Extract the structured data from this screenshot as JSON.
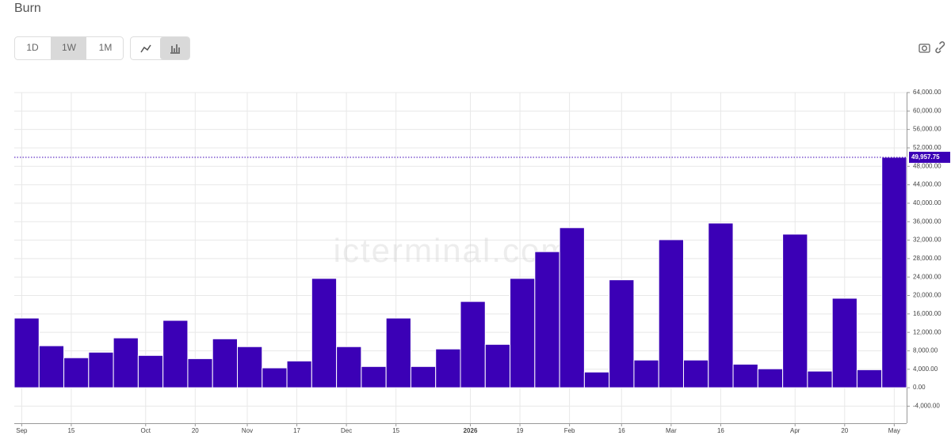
{
  "chart_data": {
    "type": "bar",
    "title": "Burn",
    "intervals": [
      "1D",
      "1W",
      "1M"
    ],
    "watermark": "icterminal.com",
    "color": "#3b00b6",
    "values": [
      15100,
      9100,
      6500,
      7700,
      10800,
      7000,
      14600,
      6300,
      10600,
      8900,
      4300,
      5800,
      23700,
      8900,
      4600,
      15100,
      4600,
      8400,
      18700,
      9400,
      23700,
      29500,
      34700,
      3400,
      23400,
      6000,
      32100,
      6000,
      35700,
      5100,
      4100,
      33300,
      3600,
      19400,
      3900,
      49957.75
    ],
    "value_labels": [
      null,
      null,
      null,
      null,
      null,
      null,
      null,
      null,
      null,
      null,
      null,
      null,
      null,
      null,
      null,
      null,
      null,
      null,
      null,
      null,
      null,
      null,
      null,
      null,
      null,
      null,
      null,
      null,
      null,
      null,
      null,
      null,
      null,
      null,
      null,
      "49,957.75"
    ],
    "xlim": [
      0,
      36
    ],
    "xticks": [
      {
        "value": 0.3,
        "label": "Sep"
      },
      {
        "value": 2.3,
        "label": "15"
      },
      {
        "value": 5.3,
        "label": "Oct"
      },
      {
        "value": 7.3,
        "label": "20"
      },
      {
        "value": 9.4,
        "label": "Nov"
      },
      {
        "value": 11.4,
        "label": "17"
      },
      {
        "value": 13.4,
        "label": "Dec"
      },
      {
        "value": 15.4,
        "label": "15"
      },
      {
        "value": 18.4,
        "label": "2026"
      },
      {
        "value": 20.4,
        "label": "19"
      },
      {
        "value": 22.4,
        "label": "Feb"
      },
      {
        "value": 24.5,
        "label": "16"
      },
      {
        "value": 26.5,
        "label": "Mar"
      },
      {
        "value": 28.5,
        "label": "16"
      },
      {
        "value": 31.5,
        "label": "Apr"
      },
      {
        "value": 33.5,
        "label": "20"
      },
      {
        "value": 35.5,
        "label": "May"
      }
    ],
    "ylim": [
      -7700,
      64000
    ],
    "yticks": [
      {
        "value": -4000,
        "label": "-4,000.00"
      },
      {
        "value": 0,
        "label": "0.00"
      },
      {
        "value": 4000,
        "label": "4,000.00"
      },
      {
        "value": 8000,
        "label": "8,000.00"
      },
      {
        "value": 12000,
        "label": "12,000.00"
      },
      {
        "value": 16000,
        "label": "16,000.00"
      },
      {
        "value": 20000,
        "label": "20,000.00"
      },
      {
        "value": 24000,
        "label": "24,000.00"
      },
      {
        "value": 28000,
        "label": "28,000.00"
      },
      {
        "value": 32000,
        "label": "32,000.00"
      },
      {
        "value": 36000,
        "label": "36,000.00"
      },
      {
        "value": 40000,
        "label": "40,000.00"
      },
      {
        "value": 44000,
        "label": "44,000.00"
      },
      {
        "value": 48000,
        "label": "48,000.00"
      },
      {
        "value": 52000,
        "label": "52,000.00"
      },
      {
        "value": 56000,
        "label": "56,000.00"
      },
      {
        "value": 60000,
        "label": "60,000.00"
      },
      {
        "value": 64000,
        "label": "64,000.00"
      }
    ],
    "grid": true
  }
}
